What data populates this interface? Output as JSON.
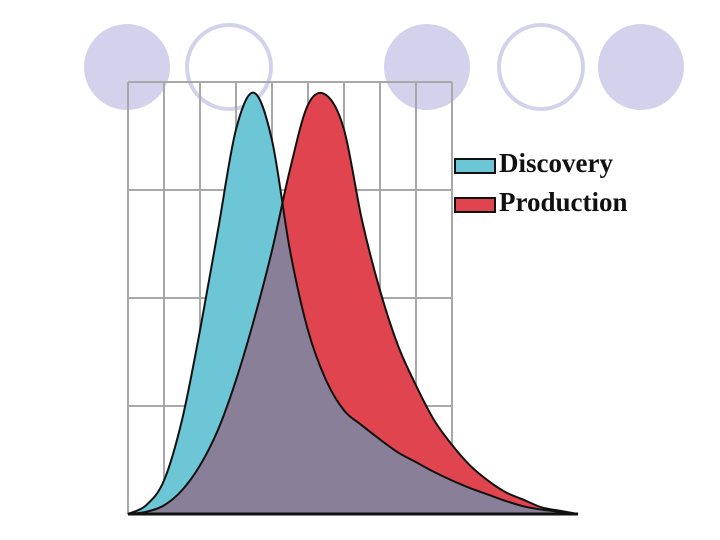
{
  "chart_data": {
    "type": "area",
    "x": [
      0,
      0.5,
      1,
      1.5,
      2,
      2.5,
      3,
      3.5,
      4,
      4.5,
      5,
      5.5,
      6,
      6.5,
      7,
      7.5,
      8,
      8.5,
      9,
      9.5,
      10,
      10.5,
      11,
      11.5,
      12,
      12.5
    ],
    "series": [
      {
        "name": "Discovery",
        "color": "#6cc6d6",
        "values": [
          0,
          0.08,
          0.31,
          0.87,
          1.7,
          2.63,
          3.56,
          3.9,
          3.46,
          2.44,
          1.7,
          1.24,
          0.96,
          0.82,
          0.69,
          0.57,
          0.48,
          0.39,
          0.31,
          0.24,
          0.18,
          0.12,
          0.07,
          0.04,
          0.02,
          0
        ]
      },
      {
        "name": "Production",
        "color": "#e0454f",
        "values": [
          0,
          0.02,
          0.08,
          0.22,
          0.45,
          0.78,
          1.24,
          1.8,
          2.44,
          3.19,
          3.79,
          3.88,
          3.56,
          2.72,
          2.07,
          1.56,
          1.19,
          0.87,
          0.64,
          0.45,
          0.31,
          0.2,
          0.13,
          0.06,
          0.03,
          0
        ]
      }
    ],
    "overlap_color": "#8a7f98",
    "xlim": [
      0,
      12.5
    ],
    "ylim": [
      0,
      4
    ],
    "xticks": [
      0,
      1,
      2,
      3,
      4,
      5,
      6,
      7,
      8,
      9
    ],
    "yticks": [
      0,
      1,
      2,
      3,
      4
    ],
    "grid": true,
    "tick_labels": false,
    "legend": "right"
  }
}
